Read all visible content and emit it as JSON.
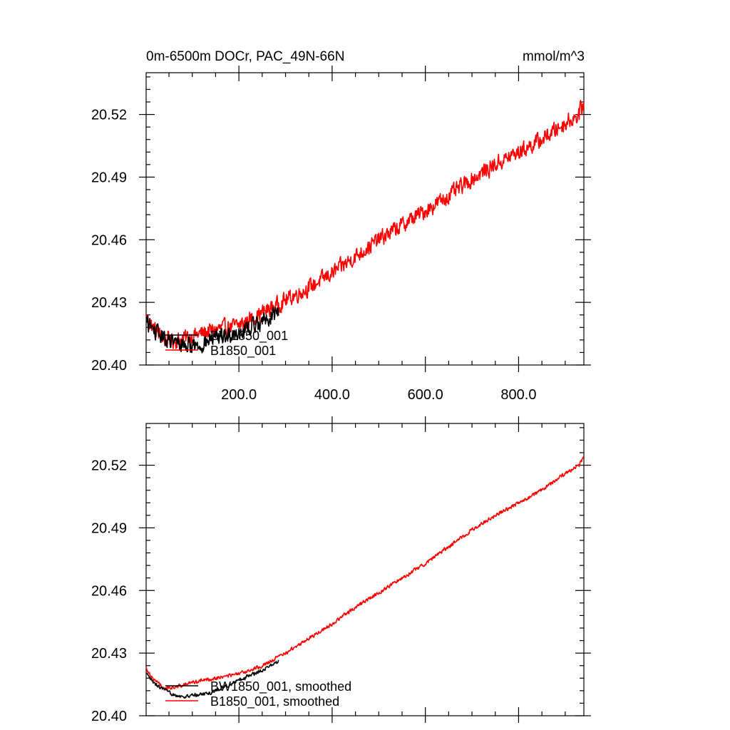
{
  "chart_data": [
    {
      "type": "line",
      "title": "0m-6500m DOCr, PAC_49N-66N",
      "units": "mmol/m^3",
      "xlim": [
        1,
        940
      ],
      "ylim": [
        20.4,
        20.54
      ],
      "xticks": [
        200,
        400,
        600,
        800
      ],
      "xtick_labels": [
        "200.0",
        "400.0",
        "600.0",
        "800.0"
      ],
      "yticks": [
        20.4,
        20.43,
        20.46,
        20.49,
        20.52
      ],
      "ytick_labels": [
        "20.40",
        "20.43",
        "20.46",
        "20.49",
        "20.52"
      ],
      "grid": false,
      "legend_position": "bottom-left",
      "noise": 0.0035,
      "series": [
        {
          "name": "B1850_001",
          "color": "#ff0000",
          "points": [
            [
              1,
              20.423
            ],
            [
              15,
              20.418
            ],
            [
              40,
              20.412
            ],
            [
              70,
              20.412
            ],
            [
              100,
              20.414
            ],
            [
              150,
              20.417
            ],
            [
              200,
              20.419
            ],
            [
              250,
              20.425
            ],
            [
              300,
              20.431
            ],
            [
              350,
              20.437
            ],
            [
              400,
              20.444
            ],
            [
              450,
              20.452
            ],
            [
              500,
              20.46
            ],
            [
              550,
              20.467
            ],
            [
              600,
              20.474
            ],
            [
              650,
              20.481
            ],
            [
              700,
              20.489
            ],
            [
              750,
              20.496
            ],
            [
              800,
              20.502
            ],
            [
              850,
              20.508
            ],
            [
              900,
              20.516
            ],
            [
              930,
              20.52
            ],
            [
              940,
              20.526
            ]
          ]
        },
        {
          "name": "BW1850_001",
          "color": "#000000",
          "points": [
            [
              1,
              20.421
            ],
            [
              20,
              20.416
            ],
            [
              50,
              20.411
            ],
            [
              80,
              20.41
            ],
            [
              110,
              20.409
            ],
            [
              140,
              20.412
            ],
            [
              170,
              20.414
            ],
            [
              200,
              20.416
            ],
            [
              230,
              20.419
            ],
            [
              260,
              20.422
            ],
            [
              285,
              20.426
            ]
          ]
        }
      ]
    },
    {
      "type": "line",
      "title": "",
      "units": "",
      "xlim": [
        1,
        940
      ],
      "ylim": [
        20.4,
        20.54
      ],
      "xticks": [
        200,
        400,
        600,
        800
      ],
      "xtick_labels": [],
      "yticks": [
        20.4,
        20.43,
        20.46,
        20.49,
        20.52
      ],
      "ytick_labels": [
        "20.40",
        "20.43",
        "20.46",
        "20.49",
        "20.52"
      ],
      "grid": false,
      "legend_position": "bottom-left",
      "noise": 0.0008,
      "series": [
        {
          "name": "B1850_001, smoothed",
          "color": "#ff0000",
          "points": [
            [
              1,
              20.423
            ],
            [
              15,
              20.418
            ],
            [
              40,
              20.413
            ],
            [
              70,
              20.414
            ],
            [
              100,
              20.416
            ],
            [
              150,
              20.418
            ],
            [
              200,
              20.42
            ],
            [
              250,
              20.424
            ],
            [
              300,
              20.43
            ],
            [
              350,
              20.437
            ],
            [
              400,
              20.444
            ],
            [
              450,
              20.452
            ],
            [
              500,
              20.459
            ],
            [
              550,
              20.466
            ],
            [
              600,
              20.473
            ],
            [
              650,
              20.481
            ],
            [
              700,
              20.489
            ],
            [
              750,
              20.496
            ],
            [
              800,
              20.502
            ],
            [
              850,
              20.508
            ],
            [
              900,
              20.516
            ],
            [
              930,
              20.52
            ],
            [
              940,
              20.524
            ]
          ]
        },
        {
          "name": "BW1850_001, smoothed",
          "color": "#000000",
          "points": [
            [
              1,
              20.42
            ],
            [
              20,
              20.415
            ],
            [
              50,
              20.411
            ],
            [
              80,
              20.409
            ],
            [
              110,
              20.41
            ],
            [
              140,
              20.411
            ],
            [
              170,
              20.414
            ],
            [
              200,
              20.417
            ],
            [
              230,
              20.42
            ],
            [
              260,
              20.423
            ],
            [
              285,
              20.426
            ]
          ]
        }
      ]
    }
  ]
}
